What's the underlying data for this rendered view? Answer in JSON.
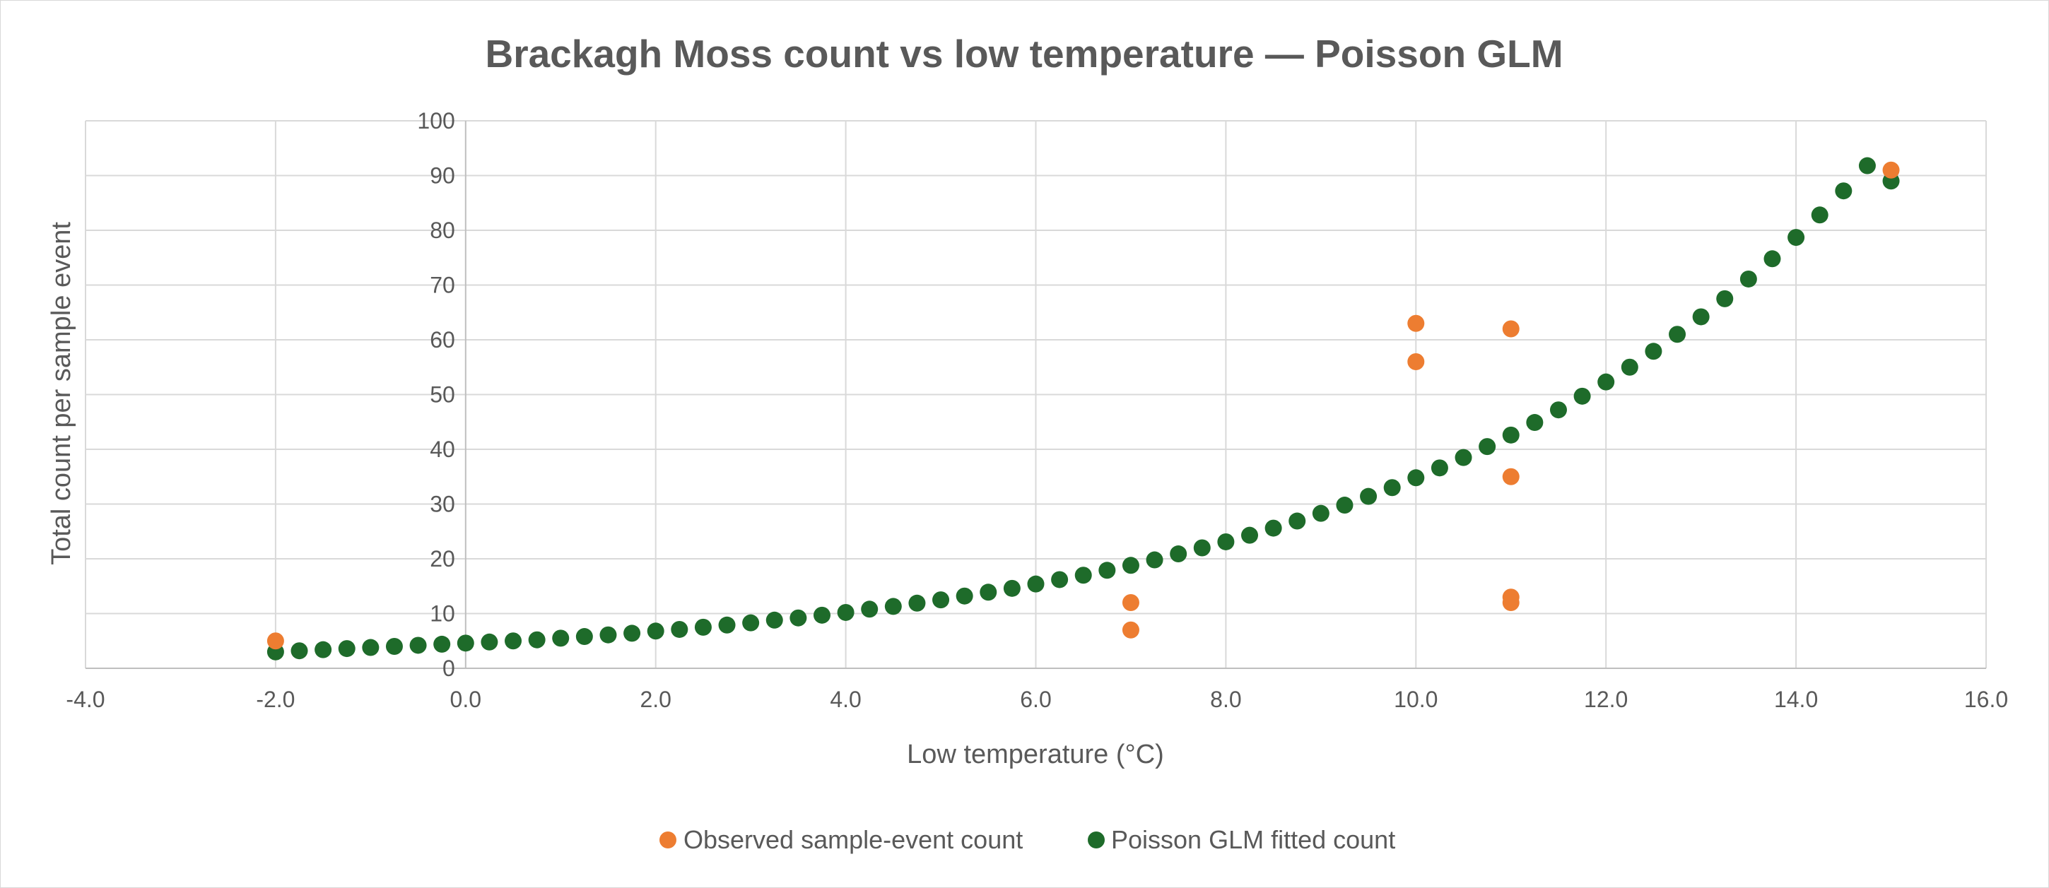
{
  "chart_data": {
    "type": "scatter",
    "title": "Brackagh Moss count vs low temperature — Poisson GLM",
    "xlabel": "Low temperature (°C)",
    "ylabel": "Total count per sample event",
    "xlim": [
      -4,
      16
    ],
    "ylim": [
      0,
      100
    ],
    "x_ticks": [
      "-4.0",
      "-2.0",
      "0.0",
      "2.0",
      "4.0",
      "6.0",
      "8.0",
      "10.0",
      "12.0",
      "14.0",
      "16.0"
    ],
    "y_ticks": [
      "0",
      "10",
      "20",
      "30",
      "40",
      "50",
      "60",
      "70",
      "80",
      "90",
      "100"
    ],
    "grid": true,
    "legend_position": "bottom",
    "series": [
      {
        "name": "Observed sample-event count",
        "color": "#ed7d31",
        "points": [
          [
            -2,
            5
          ],
          [
            7,
            12
          ],
          [
            7,
            7
          ],
          [
            10,
            63
          ],
          [
            10,
            56
          ],
          [
            11,
            62
          ],
          [
            11,
            35
          ],
          [
            11,
            13
          ],
          [
            11,
            12
          ],
          [
            15,
            91
          ]
        ]
      },
      {
        "name": "Poisson GLM fitted count",
        "color": "#1e6b2a",
        "points": [
          [
            -2.0,
            3.0
          ],
          [
            -1.75,
            3.2
          ],
          [
            -1.5,
            3.4
          ],
          [
            -1.25,
            3.6
          ],
          [
            -1.0,
            3.8
          ],
          [
            -0.75,
            4.0
          ],
          [
            -0.5,
            4.2
          ],
          [
            -0.25,
            4.4
          ],
          [
            0.0,
            4.6
          ],
          [
            0.25,
            4.8
          ],
          [
            0.5,
            5.0
          ],
          [
            0.75,
            5.2
          ],
          [
            1.0,
            5.5
          ],
          [
            1.25,
            5.8
          ],
          [
            1.5,
            6.1
          ],
          [
            1.75,
            6.4
          ],
          [
            2.0,
            6.8
          ],
          [
            2.25,
            7.1
          ],
          [
            2.5,
            7.5
          ],
          [
            2.75,
            7.9
          ],
          [
            3.0,
            8.3
          ],
          [
            3.25,
            8.8
          ],
          [
            3.5,
            9.2
          ],
          [
            3.75,
            9.7
          ],
          [
            4.0,
            10.2
          ],
          [
            4.25,
            10.8
          ],
          [
            4.5,
            11.3
          ],
          [
            4.75,
            11.9
          ],
          [
            5.0,
            12.5
          ],
          [
            5.25,
            13.2
          ],
          [
            5.5,
            13.9
          ],
          [
            5.75,
            14.6
          ],
          [
            6.0,
            15.4
          ],
          [
            6.25,
            16.2
          ],
          [
            6.5,
            17.0
          ],
          [
            6.75,
            17.9
          ],
          [
            7.0,
            18.8
          ],
          [
            7.25,
            19.8
          ],
          [
            7.5,
            20.9
          ],
          [
            7.75,
            22.0
          ],
          [
            8.0,
            23.1
          ],
          [
            8.25,
            24.3
          ],
          [
            8.5,
            25.6
          ],
          [
            8.75,
            26.9
          ],
          [
            9.0,
            28.3
          ],
          [
            9.25,
            29.8
          ],
          [
            9.5,
            31.4
          ],
          [
            9.75,
            33.0
          ],
          [
            10.0,
            34.8
          ],
          [
            10.25,
            36.6
          ],
          [
            10.5,
            38.5
          ],
          [
            10.75,
            40.5
          ],
          [
            11.0,
            42.6
          ],
          [
            11.25,
            44.9
          ],
          [
            11.5,
            47.2
          ],
          [
            11.75,
            49.7
          ],
          [
            12.0,
            52.3
          ],
          [
            12.25,
            55.0
          ],
          [
            12.5,
            57.9
          ],
          [
            12.75,
            61.0
          ],
          [
            13.0,
            64.2
          ],
          [
            13.25,
            67.5
          ],
          [
            13.5,
            71.1
          ],
          [
            13.75,
            74.8
          ],
          [
            14.0,
            78.7
          ],
          [
            14.25,
            82.8
          ],
          [
            14.5,
            87.2
          ],
          [
            14.75,
            91.8
          ],
          [
            15.0,
            89.0
          ]
        ]
      }
    ]
  }
}
